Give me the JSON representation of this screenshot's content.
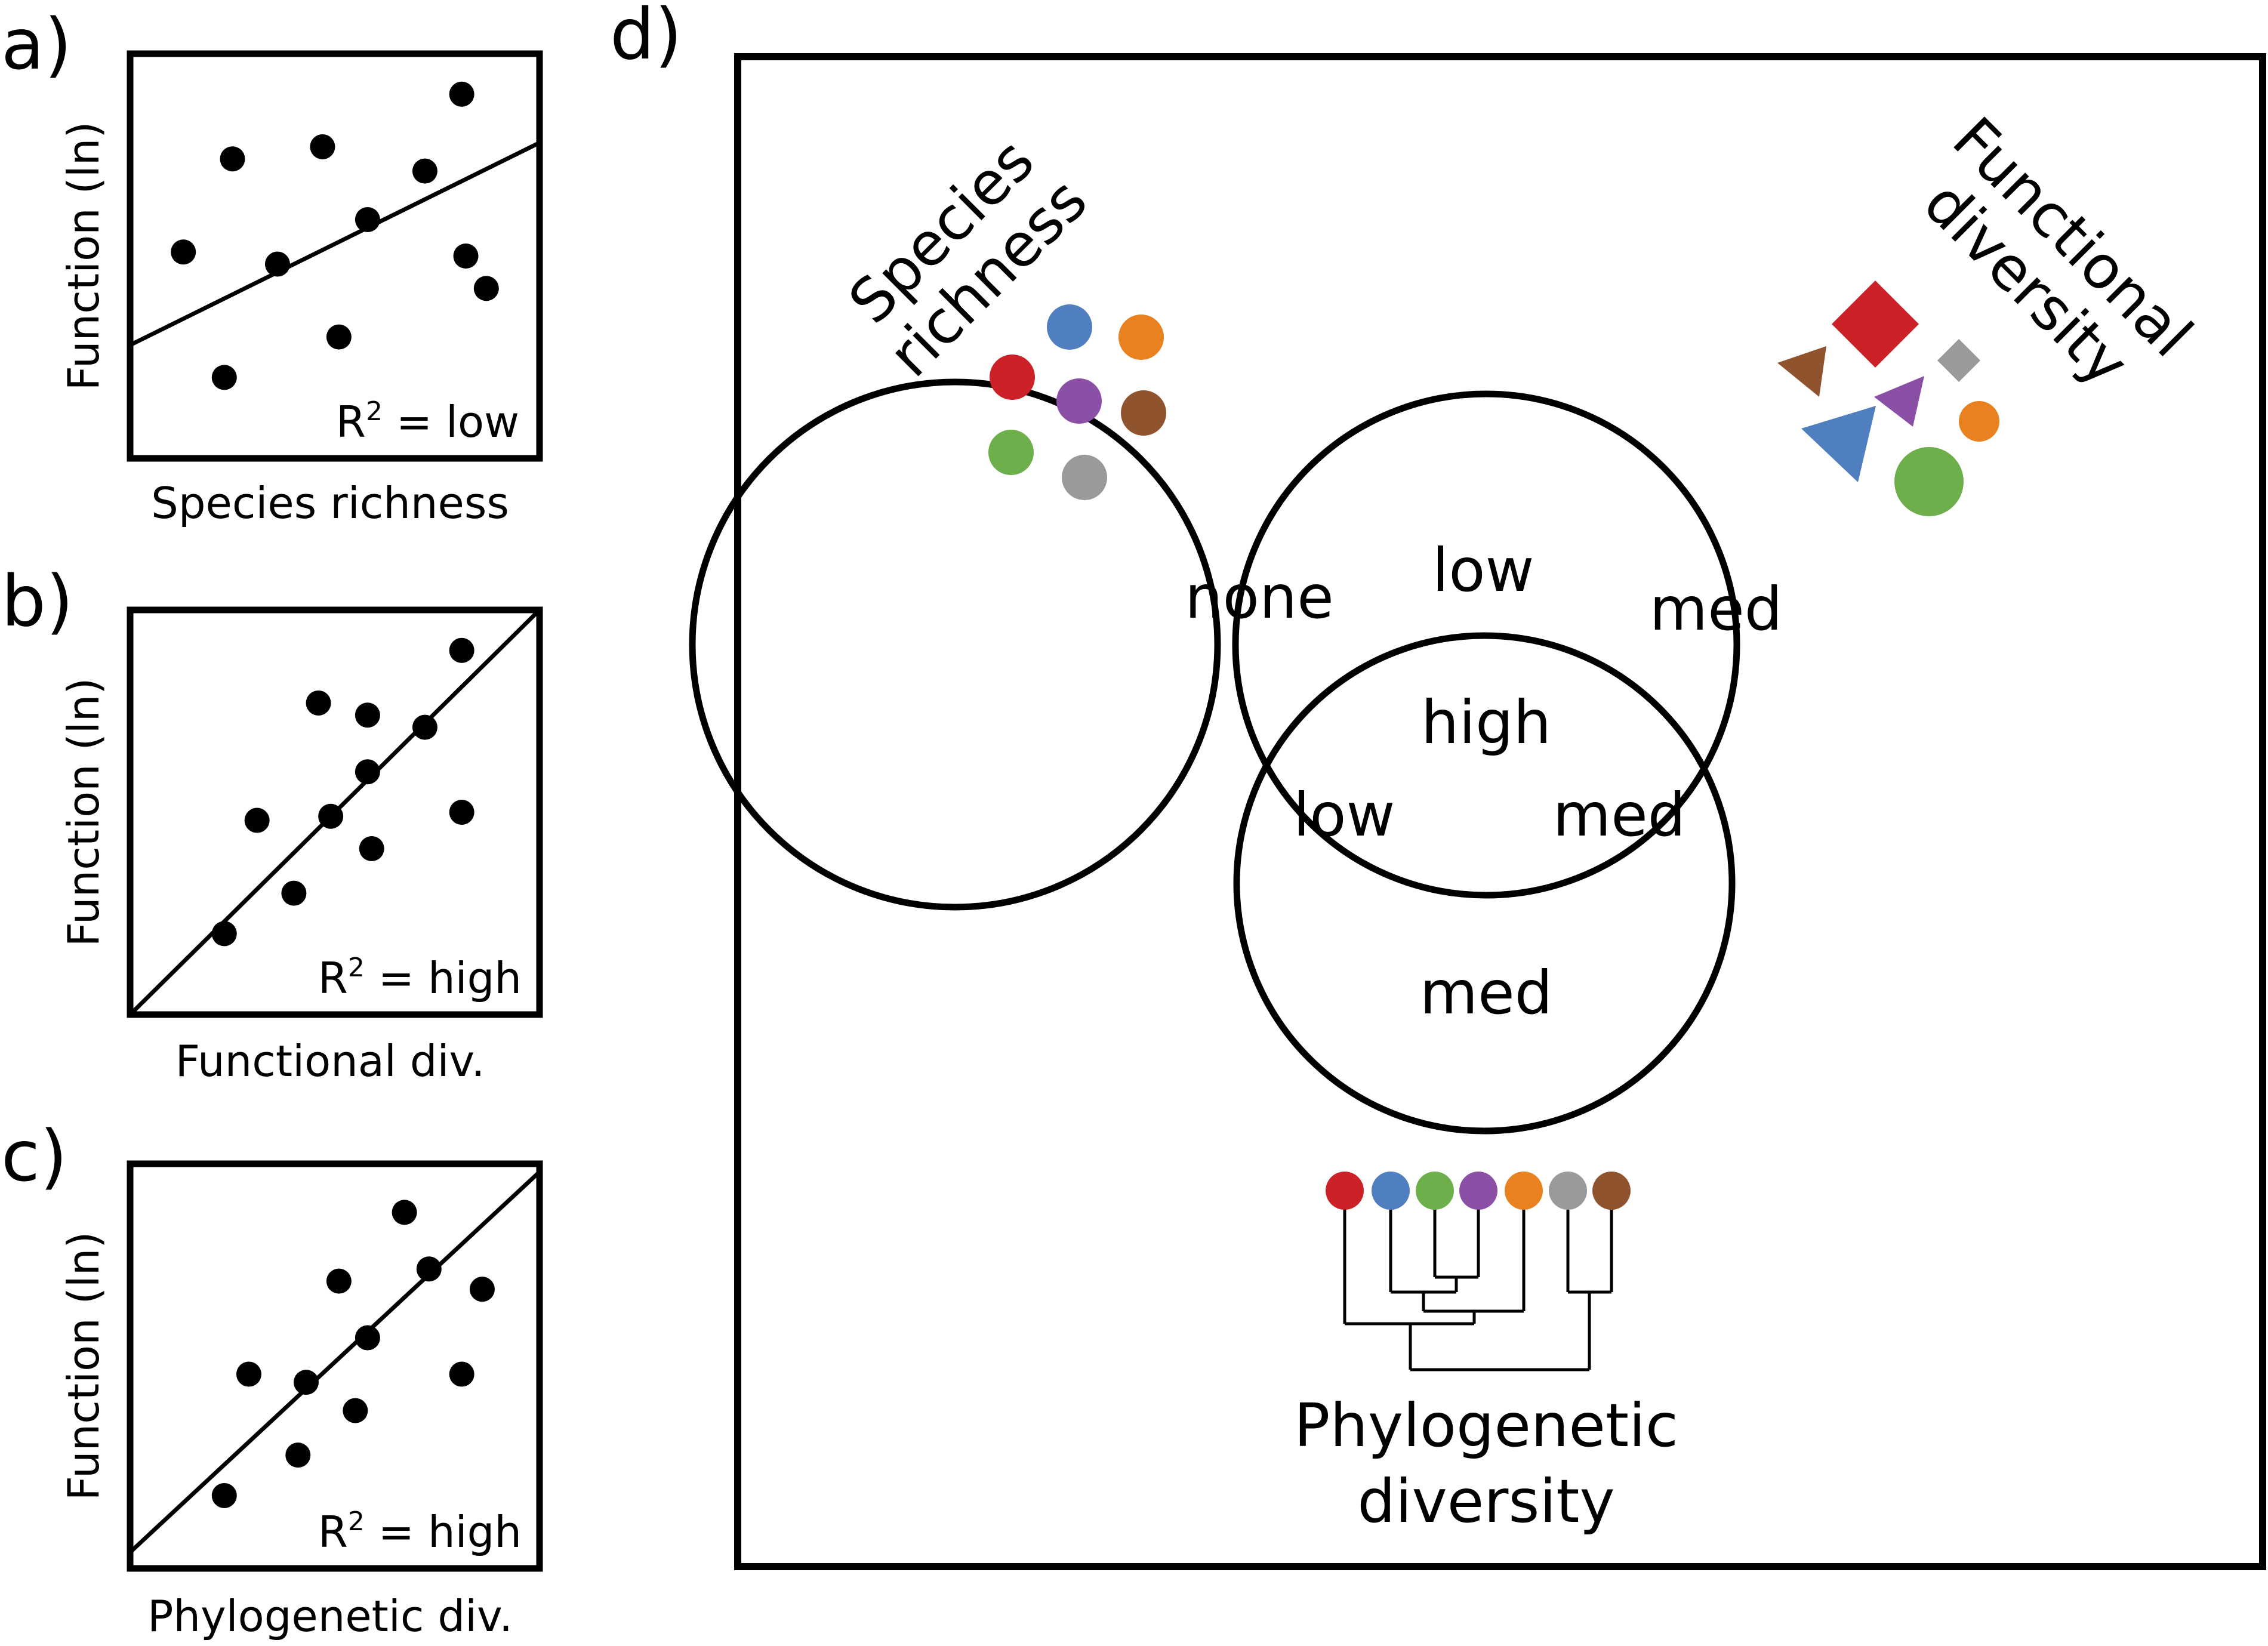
{
  "colors": {
    "red": "#cc2127",
    "blue": "#4f7fbf",
    "orange": "#e8811f",
    "purple": "#8b4fa6",
    "brown": "#8f542e",
    "green": "#6daf4a",
    "gray": "#9a9a9a",
    "ink": "#000000"
  },
  "scatter_panels": [
    {
      "letter": "a)",
      "ylabel": "Function (ln)",
      "xlabel": "Species richness",
      "r2_prefix": "R",
      "r2_sup": "2",
      "r2_suffix": " = low",
      "r2_level": "low",
      "points": [
        [
          0.13,
          0.49
        ],
        [
          0.25,
          0.26
        ],
        [
          0.47,
          0.23
        ],
        [
          0.58,
          0.41
        ],
        [
          0.72,
          0.29
        ],
        [
          0.81,
          0.1
        ],
        [
          0.36,
          0.52
        ],
        [
          0.82,
          0.5
        ],
        [
          0.87,
          0.58
        ],
        [
          0.51,
          0.7
        ],
        [
          0.23,
          0.8
        ]
      ],
      "fit_line": [
        [
          0.0,
          0.72
        ],
        [
          1.0,
          0.22
        ]
      ]
    },
    {
      "letter": "b)",
      "ylabel": "Function (ln)",
      "xlabel": "Functional div.",
      "r2_prefix": "R",
      "r2_sup": "2",
      "r2_suffix": " = high",
      "r2_level": "high",
      "points": [
        [
          0.81,
          0.1
        ],
        [
          0.46,
          0.23
        ],
        [
          0.58,
          0.26
        ],
        [
          0.72,
          0.29
        ],
        [
          0.58,
          0.4
        ],
        [
          0.31,
          0.52
        ],
        [
          0.49,
          0.51
        ],
        [
          0.81,
          0.5
        ],
        [
          0.59,
          0.59
        ],
        [
          0.4,
          0.7
        ],
        [
          0.23,
          0.8
        ]
      ],
      "fit_line": [
        [
          0.0,
          1.0
        ],
        [
          1.0,
          0.0
        ]
      ]
    },
    {
      "letter": "c)",
      "ylabel": "Function (ln)",
      "xlabel": "Phylogenetic div.",
      "r2_prefix": "R",
      "r2_sup": "2",
      "r2_suffix": " = high",
      "r2_level": "high",
      "points": [
        [
          0.67,
          0.12
        ],
        [
          0.51,
          0.29
        ],
        [
          0.73,
          0.26
        ],
        [
          0.86,
          0.31
        ],
        [
          0.58,
          0.43
        ],
        [
          0.29,
          0.52
        ],
        [
          0.43,
          0.54
        ],
        [
          0.81,
          0.52
        ],
        [
          0.55,
          0.61
        ],
        [
          0.41,
          0.72
        ],
        [
          0.23,
          0.82
        ]
      ],
      "fit_line": [
        [
          0.0,
          0.96
        ],
        [
          1.0,
          0.02
        ]
      ]
    }
  ],
  "venn": {
    "letter": "d)",
    "sets": {
      "species_richness": [
        "Species",
        "richness"
      ],
      "functional_diversity": [
        "Functional",
        "diversity"
      ],
      "phylogenetic_diversity": [
        "Phylogenetic",
        "diversity"
      ]
    },
    "regions": {
      "sr_only": "none",
      "fd_only": "med",
      "pd_only": "med",
      "sr_fd": "low",
      "sr_pd": "low",
      "fd_pd": "med",
      "all": "high"
    }
  }
}
